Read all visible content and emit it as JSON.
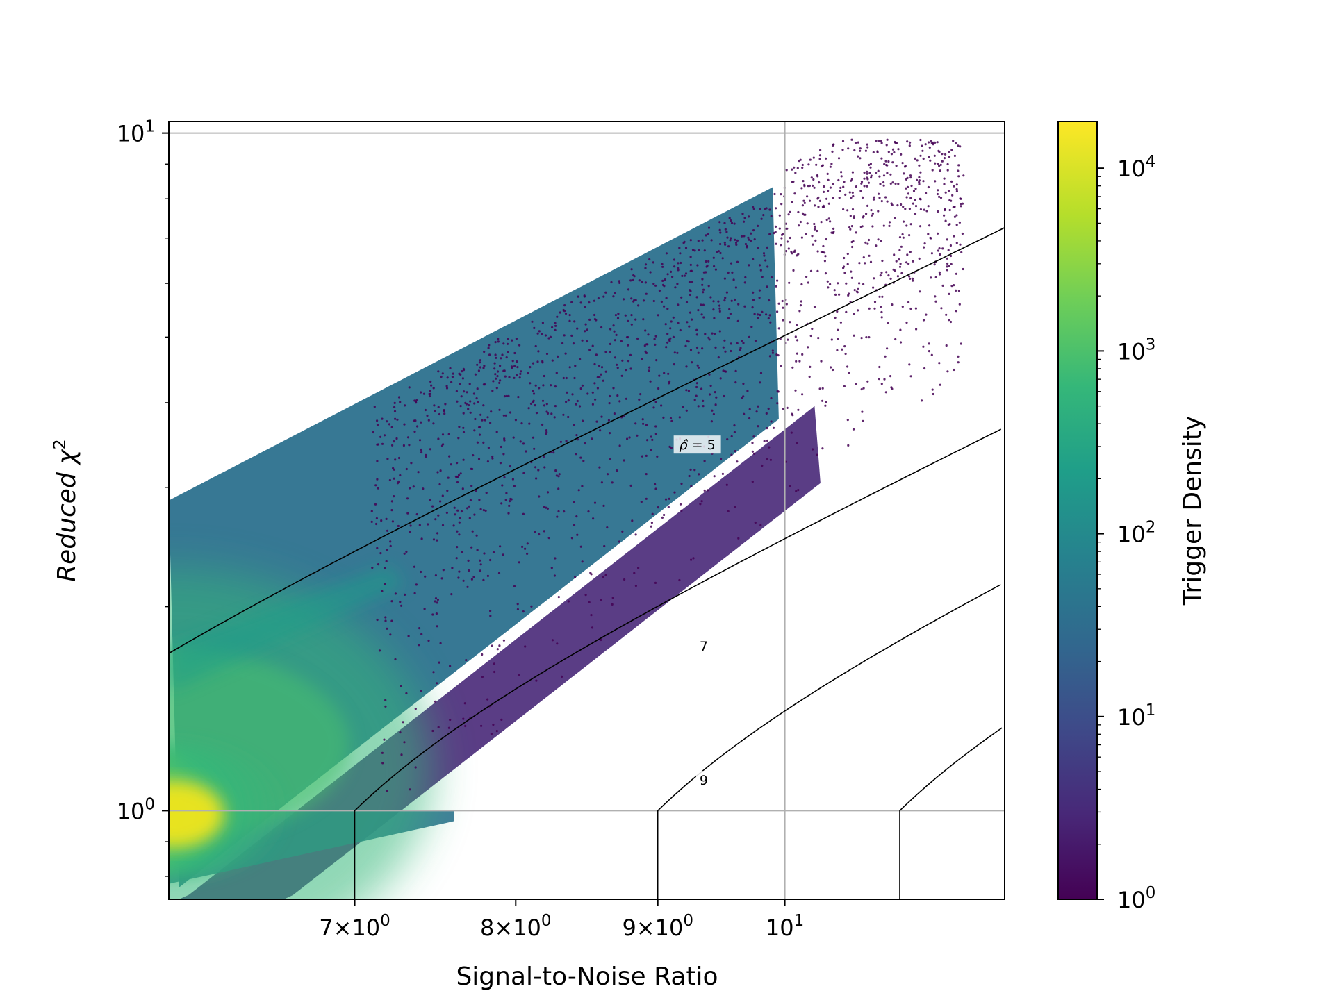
{
  "chart_data": {
    "type": "heatmap",
    "subtype": "hexbin",
    "title": "",
    "xlabel": "Signal-to-Noise Ratio",
    "ylabel": "Reduced χ²",
    "ylabel_base": "Reduced χ",
    "ylabel_sup": "2",
    "xscale": "log",
    "yscale": "log",
    "xlim": [
      6.0,
      12.0
    ],
    "ylim": [
      0.74,
      10.4
    ],
    "grid": true,
    "x_ticks": [
      {
        "value": 7,
        "mantissa": "7",
        "exp": "0"
      },
      {
        "value": 8,
        "mantissa": "8",
        "exp": "0"
      },
      {
        "value": 9,
        "mantissa": "9",
        "exp": "0"
      },
      {
        "value": 10,
        "mantissa": "",
        "exp": "1"
      }
    ],
    "y_ticks": [
      {
        "value": 1,
        "exp": "0"
      },
      {
        "value": 10,
        "exp": "1"
      }
    ],
    "colorbar": {
      "label": "Trigger Density",
      "colormap": "viridis",
      "scale": "log",
      "range": [
        1,
        18000
      ],
      "ticks": [
        {
          "value": 1,
          "exp": "0"
        },
        {
          "value": 10,
          "exp": "1"
        },
        {
          "value": 100,
          "exp": "2"
        },
        {
          "value": 1000,
          "exp": "3"
        },
        {
          "value": 10000,
          "exp": "4"
        }
      ]
    },
    "contours": [
      {
        "level": 5,
        "label": "ρ̂ = 5",
        "label_base": "ρ̂",
        "label_rest": " = 5",
        "label_at": [
          9.3,
          3.47
        ]
      },
      {
        "level": 7,
        "label": "7",
        "label_at": [
          9.35,
          1.75
        ]
      },
      {
        "level": 9,
        "label": "9",
        "label_at": [
          9.35,
          1.11
        ]
      },
      {
        "level": 11,
        "label": ""
      }
    ],
    "density_features": {
      "peak": {
        "snr": 6.0,
        "chisq": 1.0,
        "density": 18000
      },
      "population_upper_edge_at_xmin": 2.87,
      "population_upper_edge_at_x10": 8.5,
      "secondary_branch": "faint ridge near the ρ̂ = 5 contour from low SNR",
      "scatter_tail": "sparse low-density points extending to SNR ≈ 11.5 and χ² ≈ 9.5"
    }
  }
}
